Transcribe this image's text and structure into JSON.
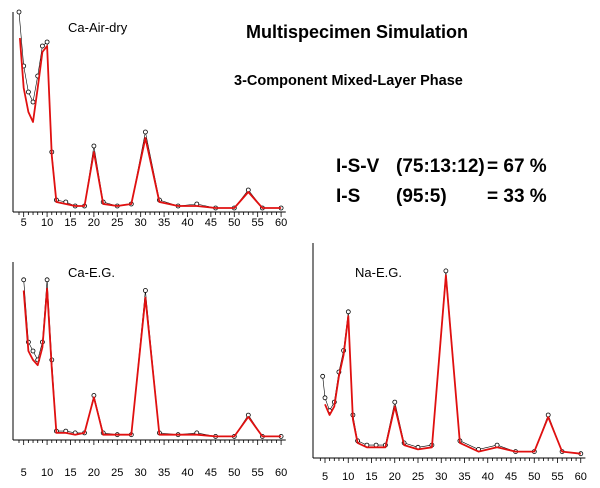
{
  "title": "Multispecimen Simulation",
  "subtitle": "3-Component Mixed-Layer Phase",
  "results": [
    {
      "phase": "I-S-V",
      "ratio": "(75:13:12)",
      "value": "= 67 %"
    },
    {
      "phase": "I-S",
      "ratio": "(95:5)",
      "value": "= 33 %"
    }
  ],
  "colors": {
    "calculated": "#e01010",
    "observed": "#000000",
    "axis": "#000000"
  },
  "chart_data": [
    {
      "type": "line",
      "panel_label": "Ca-Air-dry",
      "x_ticks": [
        5,
        10,
        15,
        20,
        25,
        30,
        35,
        40,
        45,
        50,
        55,
        60
      ],
      "xlim": [
        3,
        61
      ],
      "ylim": [
        0,
        1
      ],
      "series": [
        {
          "style": "observed (open circles)",
          "x": [
            4,
            5,
            6,
            7,
            8,
            9,
            10,
            11,
            12,
            14,
            16,
            18,
            20,
            22,
            25,
            28,
            31,
            34,
            38,
            42,
            46,
            50,
            53,
            56,
            60
          ],
          "y": [
            1.0,
            0.73,
            0.6,
            0.55,
            0.68,
            0.83,
            0.85,
            0.3,
            0.06,
            0.05,
            0.03,
            0.03,
            0.33,
            0.05,
            0.03,
            0.04,
            0.4,
            0.06,
            0.03,
            0.04,
            0.02,
            0.02,
            0.11,
            0.02,
            0.02
          ]
        },
        {
          "style": "calculated (red line)",
          "x": [
            4.2,
            5,
            6,
            7,
            8,
            9,
            10,
            11,
            12,
            14,
            16,
            18,
            20,
            22,
            25,
            28,
            31,
            34,
            38,
            42,
            46,
            50,
            53,
            56,
            60
          ],
          "y": [
            0.87,
            0.62,
            0.5,
            0.45,
            0.62,
            0.8,
            0.83,
            0.28,
            0.05,
            0.04,
            0.03,
            0.03,
            0.3,
            0.04,
            0.03,
            0.04,
            0.37,
            0.05,
            0.03,
            0.03,
            0.02,
            0.02,
            0.1,
            0.02,
            0.02
          ]
        }
      ]
    },
    {
      "type": "line",
      "panel_label": "Ca-E.G.",
      "x_ticks": [
        5,
        10,
        15,
        20,
        25,
        30,
        35,
        40,
        45,
        50,
        55,
        60
      ],
      "xlim": [
        3,
        61
      ],
      "ylim": [
        0,
        1
      ],
      "series": [
        {
          "style": "observed (open circles)",
          "x": [
            5,
            6,
            7,
            8,
            9,
            10,
            11,
            12,
            14,
            16,
            18,
            20,
            22,
            25,
            28,
            31,
            34,
            38,
            42,
            46,
            50,
            53,
            56,
            60
          ],
          "y": [
            0.9,
            0.55,
            0.5,
            0.45,
            0.55,
            0.9,
            0.45,
            0.05,
            0.05,
            0.04,
            0.04,
            0.25,
            0.04,
            0.03,
            0.03,
            0.84,
            0.04,
            0.03,
            0.04,
            0.02,
            0.02,
            0.14,
            0.02,
            0.02
          ]
        },
        {
          "style": "calculated (red line)",
          "x": [
            5,
            6,
            7,
            8,
            9,
            10,
            11,
            12,
            14,
            16,
            18,
            20,
            22,
            25,
            28,
            31,
            34,
            38,
            42,
            46,
            50,
            53,
            56,
            60
          ],
          "y": [
            0.84,
            0.5,
            0.45,
            0.42,
            0.52,
            0.85,
            0.4,
            0.04,
            0.04,
            0.03,
            0.04,
            0.24,
            0.03,
            0.03,
            0.03,
            0.8,
            0.03,
            0.03,
            0.03,
            0.02,
            0.02,
            0.13,
            0.02,
            0.02
          ]
        }
      ]
    },
    {
      "type": "line",
      "panel_label": "Na-E.G.",
      "x_ticks": [
        5,
        10,
        15,
        20,
        25,
        30,
        35,
        40,
        45,
        50,
        55,
        60
      ],
      "xlim": [
        3,
        61
      ],
      "ylim": [
        0,
        1
      ],
      "series": [
        {
          "style": "observed (open circles)",
          "x": [
            4.5,
            5,
            6,
            7,
            8,
            9,
            10,
            11,
            12,
            14,
            16,
            18,
            20,
            22,
            25,
            28,
            31,
            34,
            38,
            42,
            46,
            50,
            53,
            56,
            60
          ],
          "y": [
            0.38,
            0.28,
            0.22,
            0.26,
            0.4,
            0.5,
            0.68,
            0.2,
            0.08,
            0.06,
            0.06,
            0.06,
            0.26,
            0.07,
            0.05,
            0.06,
            0.87,
            0.08,
            0.04,
            0.06,
            0.03,
            0.03,
            0.2,
            0.03,
            0.02
          ]
        },
        {
          "style": "calculated (red line)",
          "x": [
            5,
            6,
            7,
            8,
            9,
            10,
            11,
            12,
            14,
            16,
            18,
            20,
            22,
            25,
            28,
            31,
            34,
            38,
            42,
            46,
            50,
            53,
            56,
            60
          ],
          "y": [
            0.25,
            0.2,
            0.24,
            0.38,
            0.48,
            0.66,
            0.18,
            0.07,
            0.05,
            0.05,
            0.05,
            0.24,
            0.06,
            0.04,
            0.05,
            0.85,
            0.07,
            0.03,
            0.05,
            0.03,
            0.03,
            0.19,
            0.03,
            0.02
          ]
        }
      ]
    }
  ]
}
